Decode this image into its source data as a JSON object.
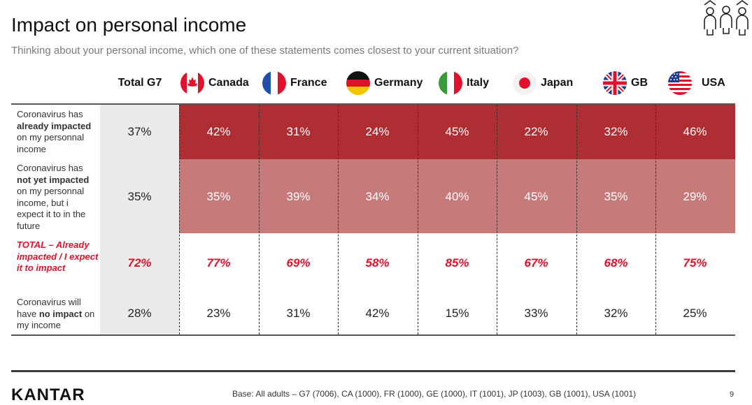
{
  "title": "Impact on personal income",
  "subtitle": "Thinking about your personal income, which one of these statements comes closest to your current situation?",
  "columns": {
    "total": "Total G7",
    "countries": [
      {
        "name": "Canada",
        "flag": "canada-flag-icon"
      },
      {
        "name": "France",
        "flag": "france-flag-icon"
      },
      {
        "name": "Germany",
        "flag": "germany-flag-icon"
      },
      {
        "name": "Italy",
        "flag": "italy-flag-icon"
      },
      {
        "name": "Japan",
        "flag": "japan-flag-icon"
      },
      {
        "name": "GB",
        "flag": "uk-flag-icon"
      },
      {
        "name": "USA",
        "flag": "usa-flag-icon"
      }
    ]
  },
  "rows": [
    {
      "label_parts": [
        [
          "Coronavirus has ",
          false
        ],
        [
          "already impacted",
          true
        ],
        [
          " on my personnal income",
          false
        ]
      ],
      "total": "37%",
      "values": [
        "42%",
        "31%",
        "24%",
        "45%",
        "22%",
        "32%",
        "46%"
      ]
    },
    {
      "label_parts": [
        [
          "Coronavirus has ",
          false
        ],
        [
          "not yet impacted",
          true
        ],
        [
          " on my personnal income, but i expect it to in the future",
          false
        ]
      ],
      "total": "35%",
      "values": [
        "35%",
        "39%",
        "34%",
        "40%",
        "45%",
        "35%",
        "29%"
      ]
    },
    {
      "label": "TOTAL – Already impacted / I expect it to impact",
      "total": "72%",
      "values": [
        "77%",
        "69%",
        "58%",
        "85%",
        "67%",
        "68%",
        "75%"
      ]
    },
    {
      "label_parts": [
        [
          "Coronavirus will have ",
          false
        ],
        [
          "no impact",
          true
        ],
        [
          " on my income",
          false
        ]
      ],
      "total": "28%",
      "values": [
        "23%",
        "31%",
        "42%",
        "15%",
        "33%",
        "32%",
        "25%"
      ]
    }
  ],
  "colors": {
    "band_already": "#ae2e33",
    "band_not_yet": "#c77a7a",
    "total_highlight": "#e0112b",
    "total_col_bg": "#ebebeb"
  },
  "footer": {
    "logo": "KANTAR",
    "base": "Base: All adults – G7 (7006), CA (1000), FR (1000), GE (1000), IT (1001), JP (1003), GB (1001), USA (1001)",
    "page": "9"
  },
  "icons": {
    "header": "people-group-icon"
  }
}
